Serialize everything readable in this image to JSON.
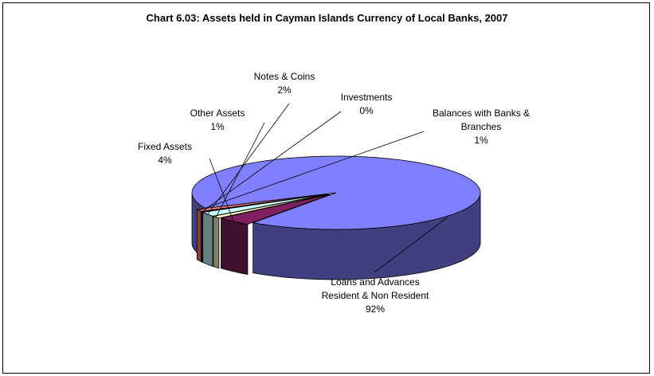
{
  "chart_data": {
    "type": "pie",
    "style": "3d-exploded",
    "title": "Chart 6.03: Assets held in Cayman Islands Currency of Local Banks, 2007",
    "slices": [
      {
        "label_lines": [
          "Loans and Advances",
          "Resident & Non Resident"
        ],
        "percent_label": "92%",
        "value": 92,
        "color": "#8080ff",
        "side_color": "#404080"
      },
      {
        "label_lines": [
          "Fixed Assets"
        ],
        "percent_label": "4%",
        "value": 4,
        "color": "#802060",
        "side_color": "#401030"
      },
      {
        "label_lines": [
          "Other Assets"
        ],
        "percent_label": "1%",
        "value": 1,
        "color": "#ffffcc",
        "side_color": "#808066"
      },
      {
        "label_lines": [
          "Notes & Coins"
        ],
        "percent_label": "2%",
        "value": 2,
        "color": "#ccffff",
        "side_color": "#668080"
      },
      {
        "label_lines": [
          "Investments"
        ],
        "percent_label": "0%",
        "value": 0.3,
        "color": "#660066",
        "side_color": "#330033"
      },
      {
        "label_lines": [
          "Balances with Banks &",
          "Branches"
        ],
        "percent_label": "1%",
        "value": 1,
        "color": "#ff8080",
        "side_color": "#804040"
      }
    ],
    "legend": "none",
    "labels": "outside-with-leader-lines"
  }
}
